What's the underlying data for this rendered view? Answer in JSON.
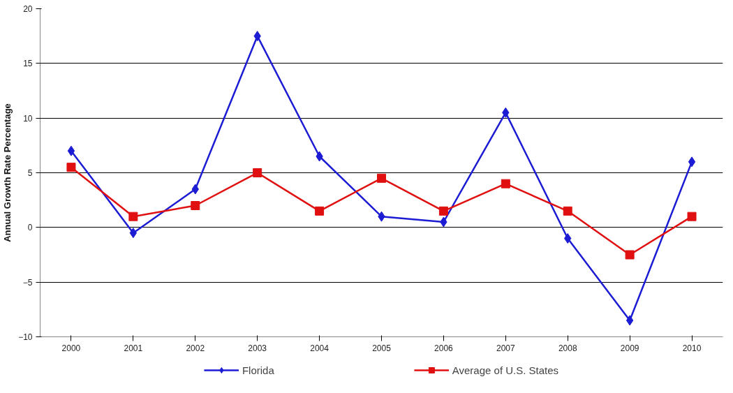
{
  "chart_data": {
    "type": "line",
    "ylabel": "Annual Growth Rate Percentage",
    "categories": [
      "2000",
      "2001",
      "2002",
      "2003",
      "2004",
      "2005",
      "2006",
      "2007",
      "2008",
      "2009",
      "2010"
    ],
    "series": [
      {
        "name": "Florida",
        "color": "#1c1cd4",
        "marker": "diamond",
        "values": [
          7,
          -0.5,
          3.5,
          17.5,
          6.5,
          1,
          0.5,
          10.5,
          -1,
          -8.5,
          6
        ]
      },
      {
        "name": "Average of U.S. States",
        "color": "#e01010",
        "marker": "square",
        "values": [
          5.5,
          1,
          2,
          5,
          1.5,
          4.5,
          1.5,
          4,
          1.5,
          -2.5,
          1
        ]
      }
    ],
    "ylim": [
      -10,
      20
    ],
    "yticks": [
      -10,
      -5,
      0,
      5,
      10,
      15,
      20
    ],
    "grid": "y",
    "legend": "bottom",
    "line_style": "solid"
  }
}
